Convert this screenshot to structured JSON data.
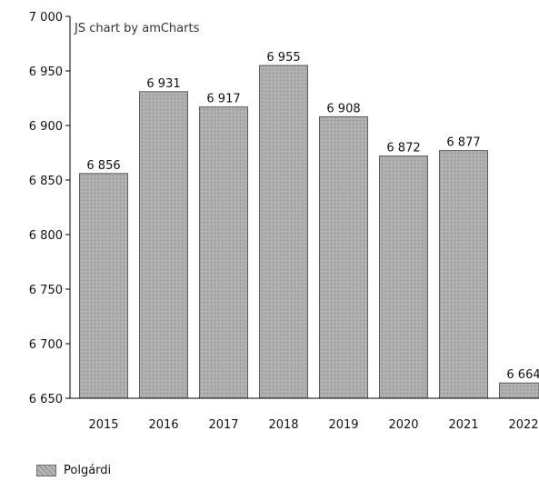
{
  "credit": "JS chart by amCharts",
  "legend": {
    "label": "Polgárdi"
  },
  "colors": {
    "bar": "#a9a9a9",
    "bar_stroke": "#5e5e5e",
    "axis": "#000000"
  },
  "chart_data": {
    "type": "bar",
    "categories": [
      "2015",
      "2016",
      "2017",
      "2018",
      "2019",
      "2020",
      "2021",
      "2022"
    ],
    "series": [
      {
        "name": "Polgárdi",
        "values": [
          6856,
          6931,
          6917,
          6955,
          6908,
          6872,
          6877,
          6664
        ],
        "labels": [
          "6 856",
          "6 931",
          "6 917",
          "6 955",
          "6 908",
          "6 872",
          "6 877",
          "6 664"
        ]
      }
    ],
    "y_ticks": [
      {
        "value": 7000,
        "label": "7 000"
      },
      {
        "value": 6950,
        "label": "6 950"
      },
      {
        "value": 6900,
        "label": "6 900"
      },
      {
        "value": 6850,
        "label": "6 850"
      },
      {
        "value": 6800,
        "label": "6 800"
      },
      {
        "value": 6750,
        "label": "6 750"
      },
      {
        "value": 6700,
        "label": "6 700"
      },
      {
        "value": 6650,
        "label": "6 650"
      }
    ],
    "ylim": [
      6650,
      7000
    ],
    "title": "",
    "xlabel": "",
    "ylabel": "",
    "grid": false,
    "legend_position": "bottom-left"
  }
}
